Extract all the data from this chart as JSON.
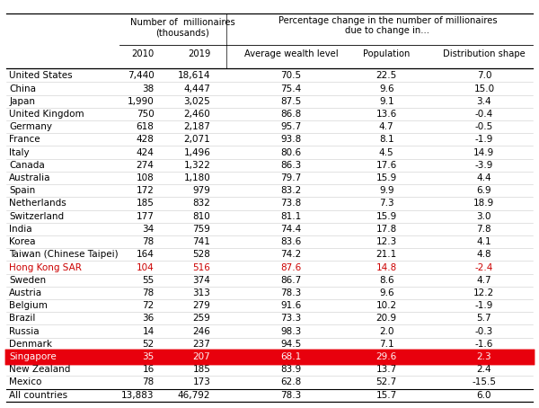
{
  "col_headers": [
    "2010",
    "2019",
    "Average wealth level",
    "Population",
    "Distribution shape"
  ],
  "rows": [
    [
      "United States",
      "7,440",
      "18,614",
      "70.5",
      "22.5",
      "7.0"
    ],
    [
      "China",
      "38",
      "4,447",
      "75.4",
      "9.6",
      "15.0"
    ],
    [
      "Japan",
      "1,990",
      "3,025",
      "87.5",
      "9.1",
      "3.4"
    ],
    [
      "United Kingdom",
      "750",
      "2,460",
      "86.8",
      "13.6",
      "-0.4"
    ],
    [
      "Germany",
      "618",
      "2,187",
      "95.7",
      "4.7",
      "-0.5"
    ],
    [
      "France",
      "428",
      "2,071",
      "93.8",
      "8.1",
      "-1.9"
    ],
    [
      "Italy",
      "424",
      "1,496",
      "80.6",
      "4.5",
      "14.9"
    ],
    [
      "Canada",
      "274",
      "1,322",
      "86.3",
      "17.6",
      "-3.9"
    ],
    [
      "Australia",
      "108",
      "1,180",
      "79.7",
      "15.9",
      "4.4"
    ],
    [
      "Spain",
      "172",
      "979",
      "83.2",
      "9.9",
      "6.9"
    ],
    [
      "Netherlands",
      "185",
      "832",
      "73.8",
      "7.3",
      "18.9"
    ],
    [
      "Switzerland",
      "177",
      "810",
      "81.1",
      "15.9",
      "3.0"
    ],
    [
      "India",
      "34",
      "759",
      "74.4",
      "17.8",
      "7.8"
    ],
    [
      "Korea",
      "78",
      "741",
      "83.6",
      "12.3",
      "4.1"
    ],
    [
      "Taiwan (Chinese Taipei)",
      "164",
      "528",
      "74.2",
      "21.1",
      "4.8"
    ],
    [
      "Hong Kong SAR",
      "104",
      "516",
      "87.6",
      "14.8",
      "-2.4"
    ],
    [
      "Sweden",
      "55",
      "374",
      "86.7",
      "8.6",
      "4.7"
    ],
    [
      "Austria",
      "78",
      "313",
      "78.3",
      "9.6",
      "12.2"
    ],
    [
      "Belgium",
      "72",
      "279",
      "91.6",
      "10.2",
      "-1.9"
    ],
    [
      "Brazil",
      "36",
      "259",
      "73.3",
      "20.9",
      "5.7"
    ],
    [
      "Russia",
      "14",
      "246",
      "98.3",
      "2.0",
      "-0.3"
    ],
    [
      "Denmark",
      "52",
      "237",
      "94.5",
      "7.1",
      "-1.6"
    ],
    [
      "Singapore",
      "35",
      "207",
      "68.1",
      "29.6",
      "2.3"
    ],
    [
      "New Zealand",
      "16",
      "185",
      "83.9",
      "13.7",
      "2.4"
    ],
    [
      "Mexico",
      "78",
      "173",
      "62.8",
      "52.7",
      "-15.5"
    ],
    [
      "All countries",
      "13,883",
      "46,792",
      "78.3",
      "15.7",
      "6.0"
    ]
  ],
  "highlighted_row": "Singapore",
  "highlight_color": "#e8000d",
  "highlight_text_color": "#ffffff",
  "bg_color": "#ffffff",
  "text_color": "#000000",
  "hk_color": "#cc0000",
  "font_size": 7.5,
  "header_fs": 7.2
}
